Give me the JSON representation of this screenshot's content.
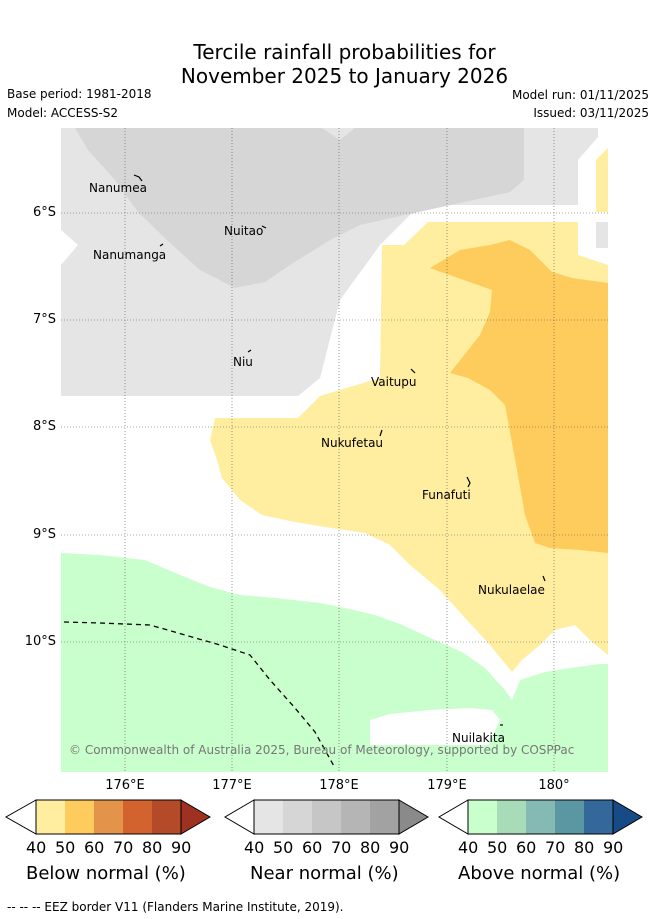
{
  "header": {
    "title_line1": "Tercile rainfall probabilities for",
    "title_line2": "November 2025 to January 2026",
    "base_period": "Base period: 1981-2018",
    "model": "Model: ACCESS-S2",
    "model_run": "Model run: 01/11/2025",
    "issued": "Issued: 03/11/2025"
  },
  "map": {
    "lat_labels": [
      "6°S",
      "7°S",
      "8°S",
      "9°S",
      "10°S"
    ],
    "lon_labels": [
      "176°E",
      "177°E",
      "178°E",
      "179°E",
      "180°"
    ],
    "places": [
      {
        "name": "Nanumea",
        "icon": "island-icon"
      },
      {
        "name": "Nuitao",
        "icon": "island-icon"
      },
      {
        "name": "Nanumanga",
        "icon": "island-icon"
      },
      {
        "name": "Niu",
        "icon": "island-icon"
      },
      {
        "name": "Vaitupu",
        "icon": "island-icon"
      },
      {
        "name": "Nukufetau",
        "icon": "island-icon"
      },
      {
        "name": "Funafuti",
        "icon": "island-icon"
      },
      {
        "name": "Nukulaelae",
        "icon": "island-icon"
      },
      {
        "name": "Nuilakita",
        "icon": "island-icon"
      }
    ],
    "copyright": "© Commonwealth of Australia 2025, Bureau of Meteorology, supported by COSPPac",
    "colors": {
      "below_40": "#ffeda0",
      "below_50": "#fecc5c",
      "near_40": "#e5e5e5",
      "near_50": "#d6d6d6",
      "above_40": "#c9ffcc",
      "eez_line": "#000000"
    }
  },
  "colorbars": [
    {
      "title": "Below normal (%)",
      "ticks": [
        "40",
        "50",
        "60",
        "70",
        "80",
        "90"
      ],
      "colors": [
        "#ffeda0",
        "#fecc5c",
        "#e3944a",
        "#d2632f",
        "#b34a28",
        "#9e3222"
      ]
    },
    {
      "title": "Near normal (%)",
      "ticks": [
        "40",
        "50",
        "60",
        "70",
        "80",
        "90"
      ],
      "colors": [
        "#e5e5e5",
        "#d6d6d6",
        "#c6c6c6",
        "#b5b5b5",
        "#a2a2a2",
        "#8a8a8a"
      ]
    },
    {
      "title": "Above normal (%)",
      "ticks": [
        "40",
        "50",
        "60",
        "70",
        "80",
        "90"
      ],
      "colors": [
        "#c9ffcc",
        "#a8dcb8",
        "#84bab3",
        "#5b97a2",
        "#35689a",
        "#164b85"
      ]
    }
  ],
  "footnote": "-- -- -- EEZ border V11 (Flanders Marine Institute, 2019)."
}
